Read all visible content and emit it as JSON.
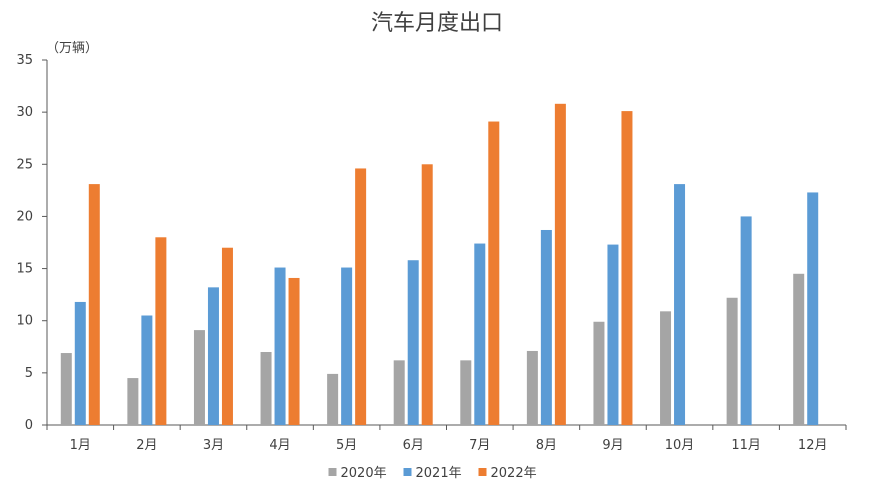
{
  "chart_data": {
    "type": "bar",
    "title": "汽车月度出口",
    "unit_label": "（万辆）",
    "categories": [
      "1月",
      "2月",
      "3月",
      "4月",
      "5月",
      "6月",
      "7月",
      "8月",
      "9月",
      "10月",
      "11月",
      "12月"
    ],
    "ylim": [
      0,
      35
    ],
    "yticks": [
      0,
      5,
      10,
      15,
      20,
      25,
      30,
      35
    ],
    "grid": false,
    "legend_position": "bottom",
    "series": [
      {
        "name": "2020年",
        "color": "#A5A5A5",
        "values": [
          6.9,
          4.5,
          9.1,
          7.0,
          4.9,
          6.2,
          6.2,
          7.1,
          9.9,
          10.9,
          12.2,
          14.5
        ]
      },
      {
        "name": "2021年",
        "color": "#5B9BD5",
        "values": [
          11.8,
          10.5,
          13.2,
          15.1,
          15.1,
          15.8,
          17.4,
          18.7,
          17.3,
          23.1,
          20.0,
          22.3
        ]
      },
      {
        "name": "2022年",
        "color": "#ED7D31",
        "values": [
          23.1,
          18.0,
          17.0,
          14.1,
          24.6,
          25.0,
          29.1,
          30.8,
          30.1,
          null,
          null,
          null
        ]
      }
    ]
  }
}
